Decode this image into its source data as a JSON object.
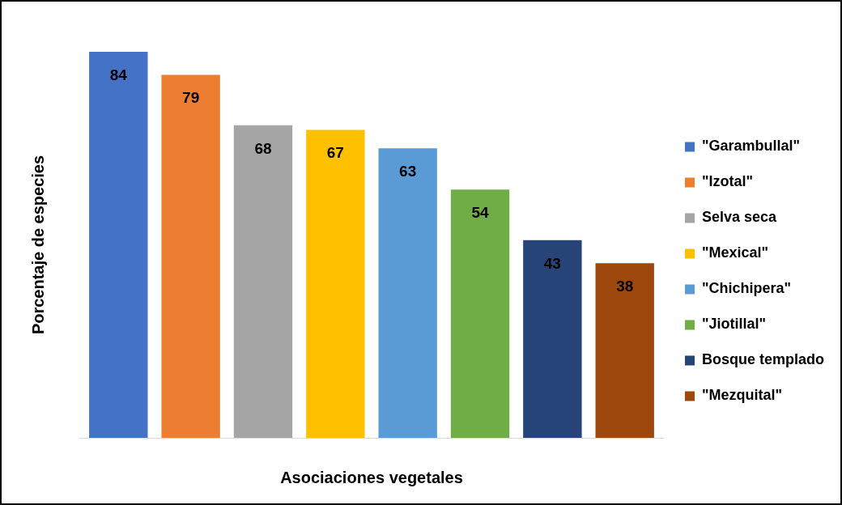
{
  "chart_data": {
    "type": "bar",
    "xlabel": "Asociaciones vegetales",
    "ylabel": "Porcentaje de especies",
    "categories": [
      null
    ],
    "series": [
      {
        "name": "\"Garambullal\"",
        "color": "#4472c4",
        "values": [
          84
        ]
      },
      {
        "name": "\"Izotal\"",
        "color": "#ed7d31",
        "values": [
          79
        ]
      },
      {
        "name": "Selva seca",
        "color": "#a5a5a5",
        "values": [
          68
        ]
      },
      {
        "name": "\"Mexical\"",
        "color": "#ffc000",
        "values": [
          67
        ]
      },
      {
        "name": "\"Chichipera\"",
        "color": "#5b9bd5",
        "values": [
          63
        ]
      },
      {
        "name": "\"Jiotillal\"",
        "color": "#70ad47",
        "values": [
          54
        ]
      },
      {
        "name": "Bosque templado",
        "color": "#264478",
        "values": [
          43
        ]
      },
      {
        "name": "\"Mezquital\"",
        "color": "#9e480e",
        "values": [
          38
        ]
      }
    ],
    "ylim": [
      0,
      84
    ],
    "data_labels": true,
    "legend": "right",
    "grid": false,
    "tick_labels": false
  }
}
